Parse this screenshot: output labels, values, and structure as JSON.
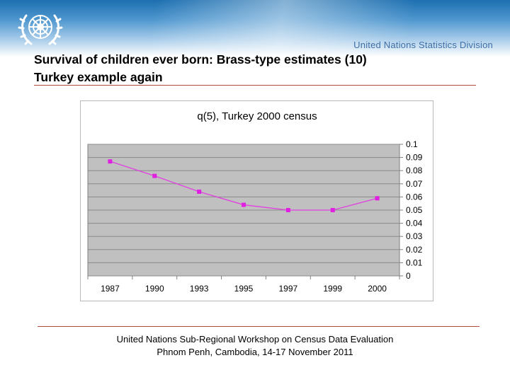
{
  "header": {
    "division": "United Nations Statistics Division"
  },
  "slide": {
    "title_line1": "Survival of children ever born: Brass-type estimates (10)",
    "title_line2": "Turkey example again"
  },
  "footer": {
    "line1": "United Nations Sub-Regional Workshop on Census Data Evaluation",
    "line2": "Phnom Penh, Cambodia, 14-17 November 2011"
  },
  "colors": {
    "plot_bg": "#c0c0c0",
    "line": "#e040e0",
    "marker": "#e020e0"
  },
  "chart_data": {
    "type": "line",
    "title": "q(5), Turkey 2000 census",
    "categories": [
      "1987",
      "1990",
      "1993",
      "1995",
      "1997",
      "1999",
      "2000"
    ],
    "series": [
      {
        "values": [
          0.087,
          0.076,
          0.064,
          0.054,
          0.05,
          0.05,
          0.059
        ]
      }
    ],
    "yticks": [
      "0",
      "0.01",
      "0.02",
      "0.03",
      "0.04",
      "0.05",
      "0.06",
      "0.07",
      "0.08",
      "0.09",
      "0.1"
    ],
    "ylim": [
      0,
      0.1
    ],
    "yaxis_position": "right",
    "grid": true,
    "legend": "none"
  }
}
